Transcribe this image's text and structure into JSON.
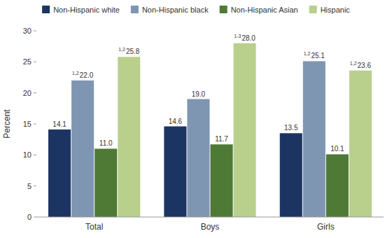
{
  "chart_data": {
    "type": "bar",
    "categories": [
      "Total",
      "Boys",
      "Girls"
    ],
    "series": [
      {
        "name": "Non-Hispanic white",
        "color": "#1c3461",
        "values": [
          14.1,
          14.6,
          13.5
        ],
        "value_labels": [
          "14.1",
          "14.6",
          "13.5"
        ]
      },
      {
        "name": "Non-Hispanic black",
        "color": "#7f96b2",
        "values": [
          22.0,
          19.0,
          25.1
        ],
        "value_labels": [
          "22.0",
          "19.0",
          "25.1"
        ],
        "notes": [
          "1,2",
          null,
          "1,2"
        ]
      },
      {
        "name": "Non-Hispanic Asian",
        "color": "#4e7a35",
        "values": [
          11.0,
          11.7,
          10.1
        ],
        "value_labels": [
          "11.0",
          "11.7",
          "10.1"
        ]
      },
      {
        "name": "Hispanic",
        "color": "#b8d08c",
        "values": [
          25.8,
          28.0,
          23.6
        ],
        "value_labels": [
          "25.8",
          "28.0",
          "23.6"
        ],
        "notes": [
          "1,2",
          "1-3",
          "1,2"
        ]
      }
    ],
    "ylabel": "Percent",
    "ylim": [
      0,
      30
    ],
    "yticks": [
      0,
      5,
      10,
      15,
      20,
      25,
      30
    ],
    "grid": false,
    "legend": "top",
    "data_labels": true
  }
}
